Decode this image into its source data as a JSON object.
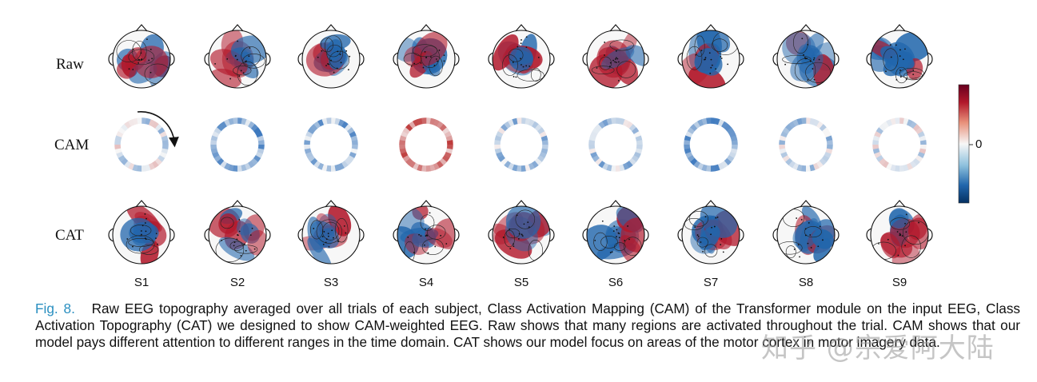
{
  "figure": {
    "row_labels": [
      "Raw",
      "CAM",
      "CAT"
    ],
    "subjects": [
      "S1",
      "S2",
      "S3",
      "S4",
      "S5",
      "S6",
      "S7",
      "S8",
      "S9"
    ],
    "colorbar": {
      "tick_label": "0",
      "colormap": "RdBu_r",
      "top_color": "#b2182b",
      "bottom_color": "#2166ac",
      "mid_color": "#f7f7f7"
    },
    "rotation_arrow_icon": "clockwise-arrow-icon",
    "colors": {
      "red": "#b2182b",
      "blue": "#2166ac",
      "white": "#f7f7f7"
    }
  },
  "caption": {
    "figure_number": "Fig. 8.",
    "text": "Raw EEG topography averaged over all trials of each subject, Class Activation Mapping (CAM) of the Transformer module on the input EEG, Class Activation Topography (CAT) we designed to show CAM-weighted EEG. Raw shows that many regions are activated throughout the trial. CAM shows that our model pays different attention to different ranges in the time domain. CAT shows our model focus on areas of the motor cortex in motor imagery data."
  },
  "watermark": "知乎 @宗爱阿大陆"
}
